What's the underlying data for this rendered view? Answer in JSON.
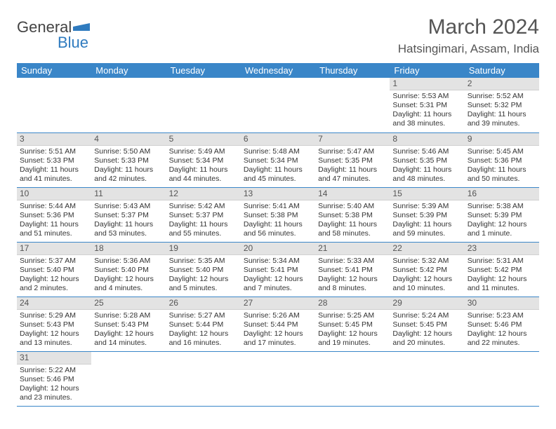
{
  "logo": {
    "word1": "General",
    "word2": "Blue"
  },
  "title": "March 2024",
  "location": "Hatsingimari, Assam, India",
  "colors": {
    "header_bg": "#3a86c8",
    "header_text": "#ffffff",
    "daynum_bg": "#e3e3e3",
    "row_border": "#3a86c8",
    "logo_blue": "#2f7bbf"
  },
  "weekdays": [
    "Sunday",
    "Monday",
    "Tuesday",
    "Wednesday",
    "Thursday",
    "Friday",
    "Saturday"
  ],
  "weeks": [
    [
      null,
      null,
      null,
      null,
      null,
      {
        "n": "1",
        "sunrise": "Sunrise: 5:53 AM",
        "sunset": "Sunset: 5:31 PM",
        "daylight": "Daylight: 11 hours and 38 minutes."
      },
      {
        "n": "2",
        "sunrise": "Sunrise: 5:52 AM",
        "sunset": "Sunset: 5:32 PM",
        "daylight": "Daylight: 11 hours and 39 minutes."
      }
    ],
    [
      {
        "n": "3",
        "sunrise": "Sunrise: 5:51 AM",
        "sunset": "Sunset: 5:33 PM",
        "daylight": "Daylight: 11 hours and 41 minutes."
      },
      {
        "n": "4",
        "sunrise": "Sunrise: 5:50 AM",
        "sunset": "Sunset: 5:33 PM",
        "daylight": "Daylight: 11 hours and 42 minutes."
      },
      {
        "n": "5",
        "sunrise": "Sunrise: 5:49 AM",
        "sunset": "Sunset: 5:34 PM",
        "daylight": "Daylight: 11 hours and 44 minutes."
      },
      {
        "n": "6",
        "sunrise": "Sunrise: 5:48 AM",
        "sunset": "Sunset: 5:34 PM",
        "daylight": "Daylight: 11 hours and 45 minutes."
      },
      {
        "n": "7",
        "sunrise": "Sunrise: 5:47 AM",
        "sunset": "Sunset: 5:35 PM",
        "daylight": "Daylight: 11 hours and 47 minutes."
      },
      {
        "n": "8",
        "sunrise": "Sunrise: 5:46 AM",
        "sunset": "Sunset: 5:35 PM",
        "daylight": "Daylight: 11 hours and 48 minutes."
      },
      {
        "n": "9",
        "sunrise": "Sunrise: 5:45 AM",
        "sunset": "Sunset: 5:36 PM",
        "daylight": "Daylight: 11 hours and 50 minutes."
      }
    ],
    [
      {
        "n": "10",
        "sunrise": "Sunrise: 5:44 AM",
        "sunset": "Sunset: 5:36 PM",
        "daylight": "Daylight: 11 hours and 51 minutes."
      },
      {
        "n": "11",
        "sunrise": "Sunrise: 5:43 AM",
        "sunset": "Sunset: 5:37 PM",
        "daylight": "Daylight: 11 hours and 53 minutes."
      },
      {
        "n": "12",
        "sunrise": "Sunrise: 5:42 AM",
        "sunset": "Sunset: 5:37 PM",
        "daylight": "Daylight: 11 hours and 55 minutes."
      },
      {
        "n": "13",
        "sunrise": "Sunrise: 5:41 AM",
        "sunset": "Sunset: 5:38 PM",
        "daylight": "Daylight: 11 hours and 56 minutes."
      },
      {
        "n": "14",
        "sunrise": "Sunrise: 5:40 AM",
        "sunset": "Sunset: 5:38 PM",
        "daylight": "Daylight: 11 hours and 58 minutes."
      },
      {
        "n": "15",
        "sunrise": "Sunrise: 5:39 AM",
        "sunset": "Sunset: 5:39 PM",
        "daylight": "Daylight: 11 hours and 59 minutes."
      },
      {
        "n": "16",
        "sunrise": "Sunrise: 5:38 AM",
        "sunset": "Sunset: 5:39 PM",
        "daylight": "Daylight: 12 hours and 1 minute."
      }
    ],
    [
      {
        "n": "17",
        "sunrise": "Sunrise: 5:37 AM",
        "sunset": "Sunset: 5:40 PM",
        "daylight": "Daylight: 12 hours and 2 minutes."
      },
      {
        "n": "18",
        "sunrise": "Sunrise: 5:36 AM",
        "sunset": "Sunset: 5:40 PM",
        "daylight": "Daylight: 12 hours and 4 minutes."
      },
      {
        "n": "19",
        "sunrise": "Sunrise: 5:35 AM",
        "sunset": "Sunset: 5:40 PM",
        "daylight": "Daylight: 12 hours and 5 minutes."
      },
      {
        "n": "20",
        "sunrise": "Sunrise: 5:34 AM",
        "sunset": "Sunset: 5:41 PM",
        "daylight": "Daylight: 12 hours and 7 minutes."
      },
      {
        "n": "21",
        "sunrise": "Sunrise: 5:33 AM",
        "sunset": "Sunset: 5:41 PM",
        "daylight": "Daylight: 12 hours and 8 minutes."
      },
      {
        "n": "22",
        "sunrise": "Sunrise: 5:32 AM",
        "sunset": "Sunset: 5:42 PM",
        "daylight": "Daylight: 12 hours and 10 minutes."
      },
      {
        "n": "23",
        "sunrise": "Sunrise: 5:31 AM",
        "sunset": "Sunset: 5:42 PM",
        "daylight": "Daylight: 12 hours and 11 minutes."
      }
    ],
    [
      {
        "n": "24",
        "sunrise": "Sunrise: 5:29 AM",
        "sunset": "Sunset: 5:43 PM",
        "daylight": "Daylight: 12 hours and 13 minutes."
      },
      {
        "n": "25",
        "sunrise": "Sunrise: 5:28 AM",
        "sunset": "Sunset: 5:43 PM",
        "daylight": "Daylight: 12 hours and 14 minutes."
      },
      {
        "n": "26",
        "sunrise": "Sunrise: 5:27 AM",
        "sunset": "Sunset: 5:44 PM",
        "daylight": "Daylight: 12 hours and 16 minutes."
      },
      {
        "n": "27",
        "sunrise": "Sunrise: 5:26 AM",
        "sunset": "Sunset: 5:44 PM",
        "daylight": "Daylight: 12 hours and 17 minutes."
      },
      {
        "n": "28",
        "sunrise": "Sunrise: 5:25 AM",
        "sunset": "Sunset: 5:45 PM",
        "daylight": "Daylight: 12 hours and 19 minutes."
      },
      {
        "n": "29",
        "sunrise": "Sunrise: 5:24 AM",
        "sunset": "Sunset: 5:45 PM",
        "daylight": "Daylight: 12 hours and 20 minutes."
      },
      {
        "n": "30",
        "sunrise": "Sunrise: 5:23 AM",
        "sunset": "Sunset: 5:46 PM",
        "daylight": "Daylight: 12 hours and 22 minutes."
      }
    ],
    [
      {
        "n": "31",
        "sunrise": "Sunrise: 5:22 AM",
        "sunset": "Sunset: 5:46 PM",
        "daylight": "Daylight: 12 hours and 23 minutes."
      },
      null,
      null,
      null,
      null,
      null,
      null
    ]
  ]
}
